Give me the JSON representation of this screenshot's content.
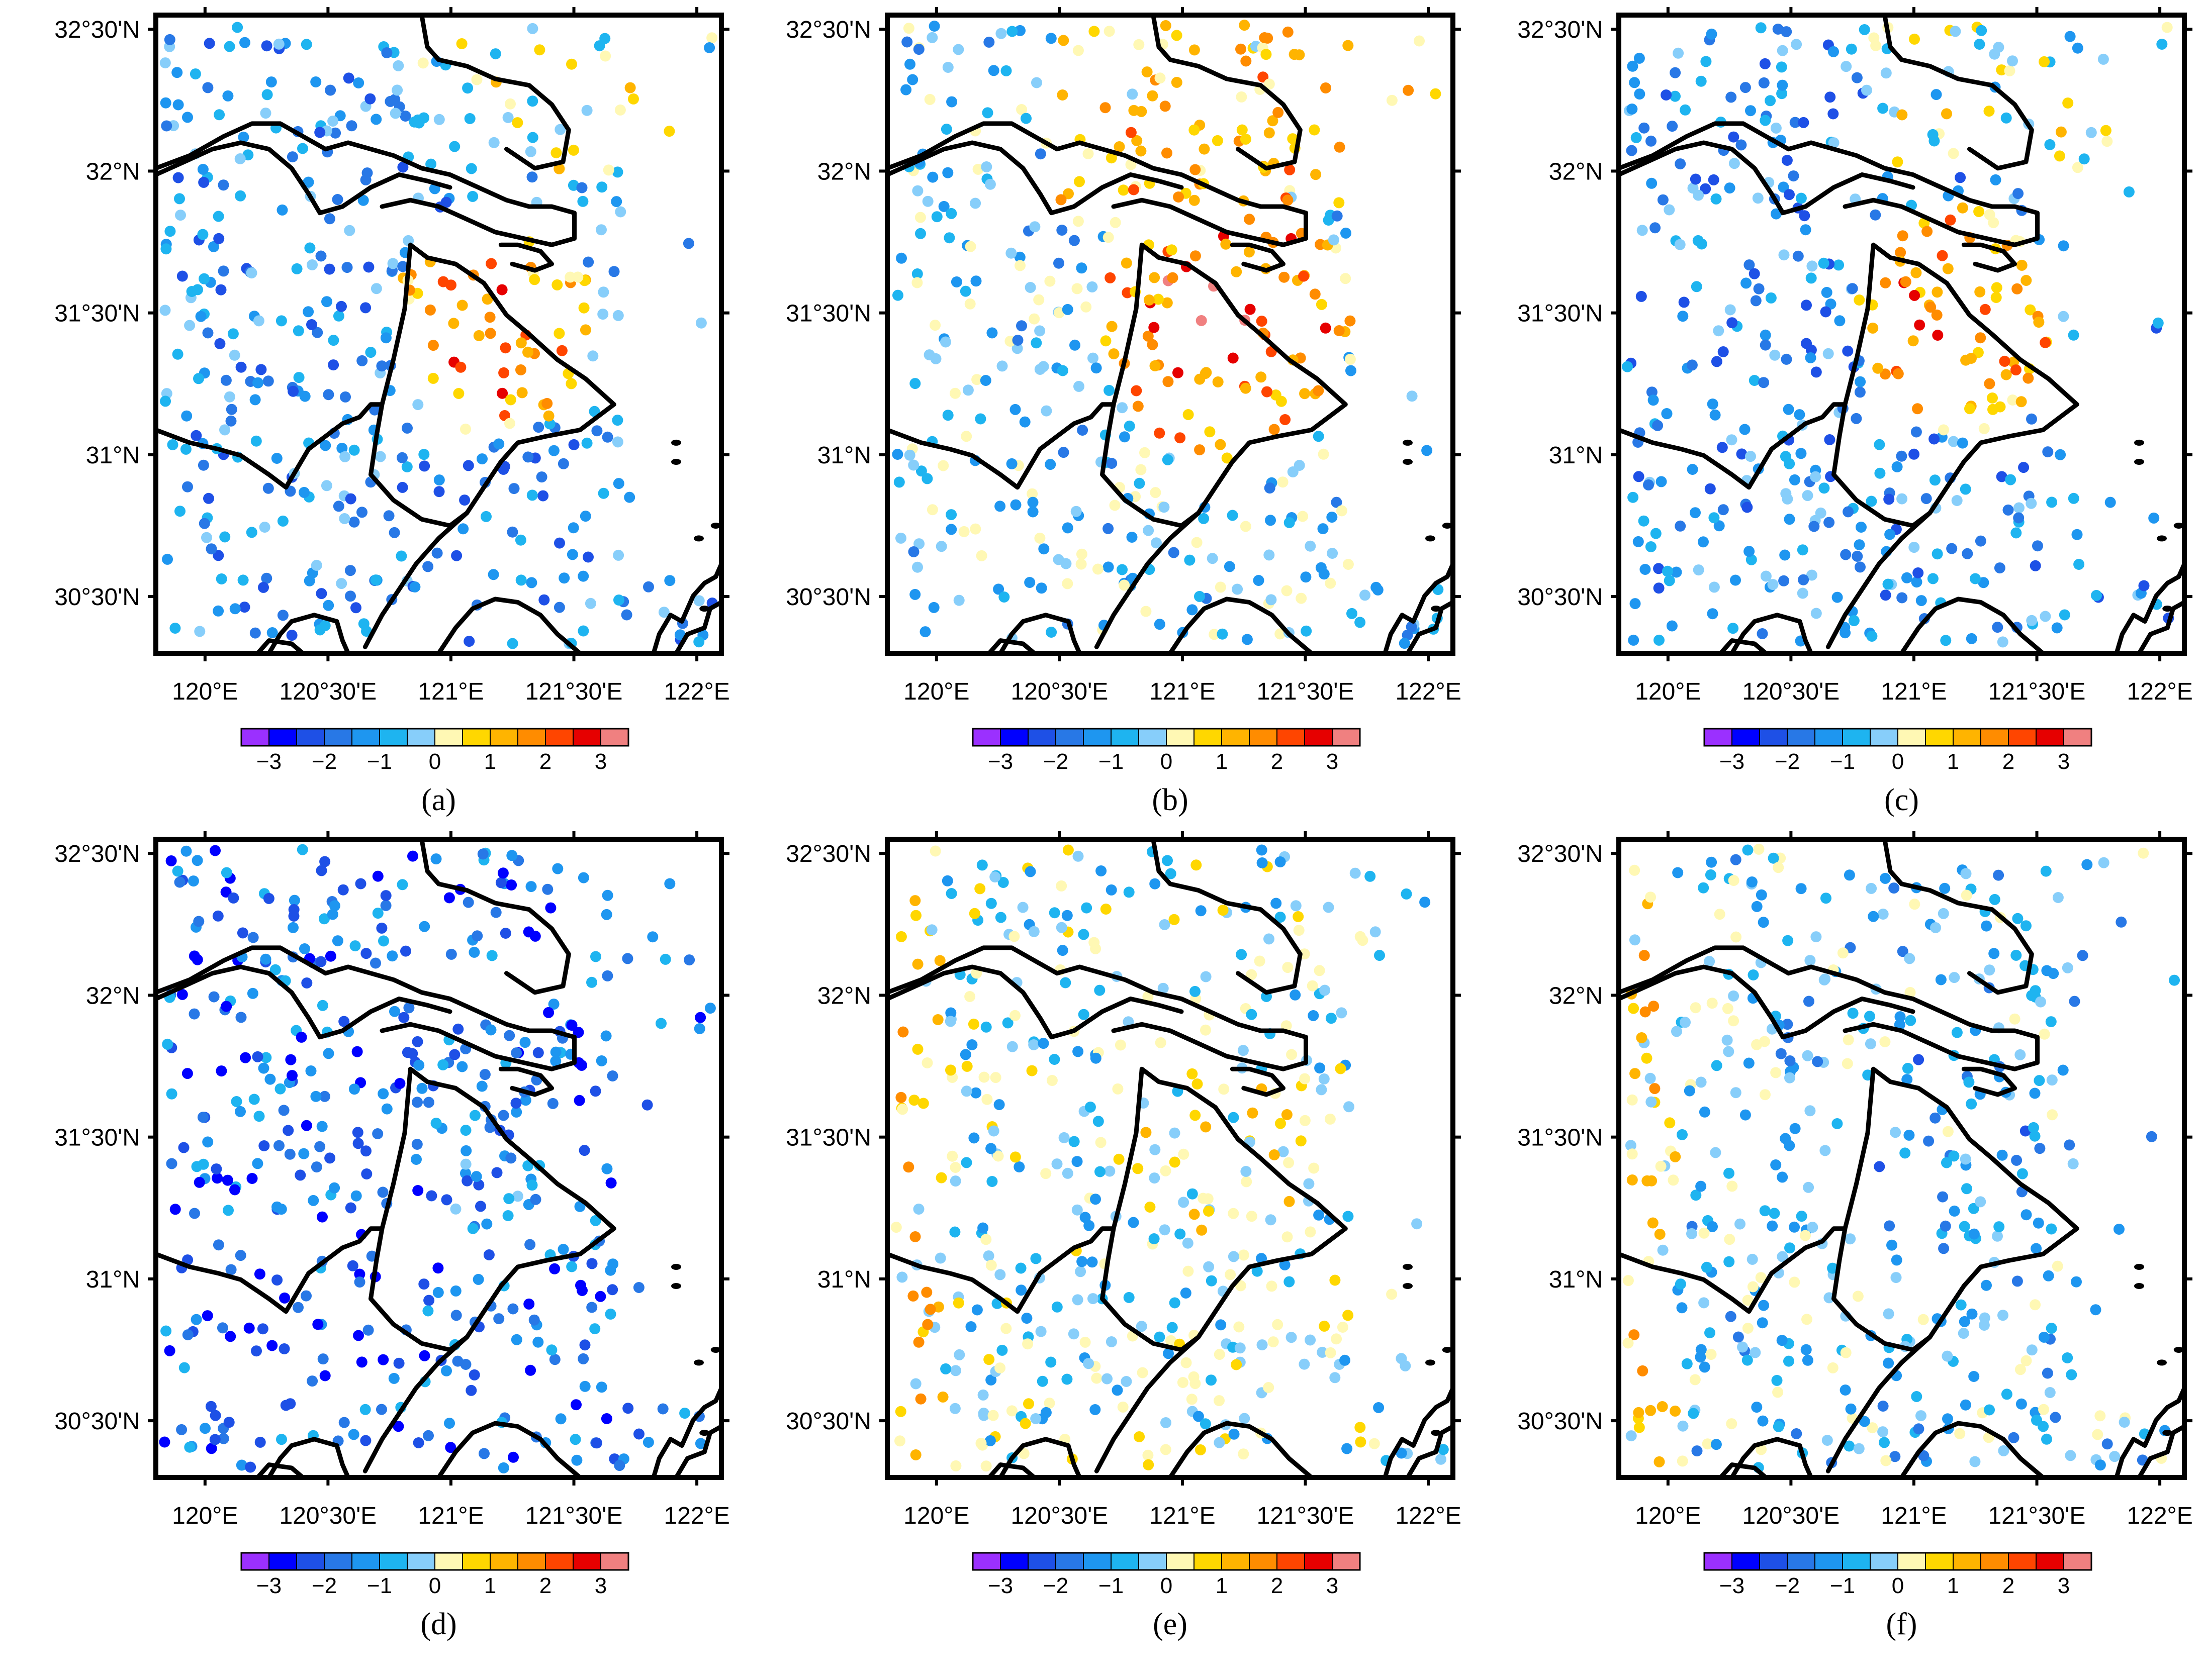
{
  "figure": {
    "type": "station-map-panels",
    "lat_range": [
      30.3,
      32.55
    ],
    "lon_range": [
      119.8,
      122.1
    ],
    "lat_ticks": [
      "32°30'N",
      "32°N",
      "31°30'N",
      "31°N",
      "30°30'N"
    ],
    "lon_ticks": [
      "120°E",
      "120°30'E",
      "121°E",
      "121°30'E",
      "122°E"
    ],
    "colorbar": {
      "tick_labels": [
        "−3",
        "−2",
        "−1",
        "0",
        "1",
        "2",
        "3"
      ],
      "colors": [
        "#9b30ff",
        "#0000ff",
        "#1e50e6",
        "#2878e6",
        "#1e96f0",
        "#1eb4f0",
        "#87cefa",
        "#fff8b4",
        "#ffd700",
        "#ffb400",
        "#ff8c00",
        "#ff4500",
        "#e60000",
        "#f08080"
      ]
    },
    "panels": [
      {
        "label": "(a)",
        "pattern": "warm-core"
      },
      {
        "label": "(b)",
        "pattern": "warm-strong"
      },
      {
        "label": "(c)",
        "pattern": "warm-core"
      },
      {
        "label": "(d)",
        "pattern": "cold"
      },
      {
        "label": "(e)",
        "pattern": "mixed"
      },
      {
        "label": "(f)",
        "pattern": "cool-mixed"
      }
    ]
  }
}
